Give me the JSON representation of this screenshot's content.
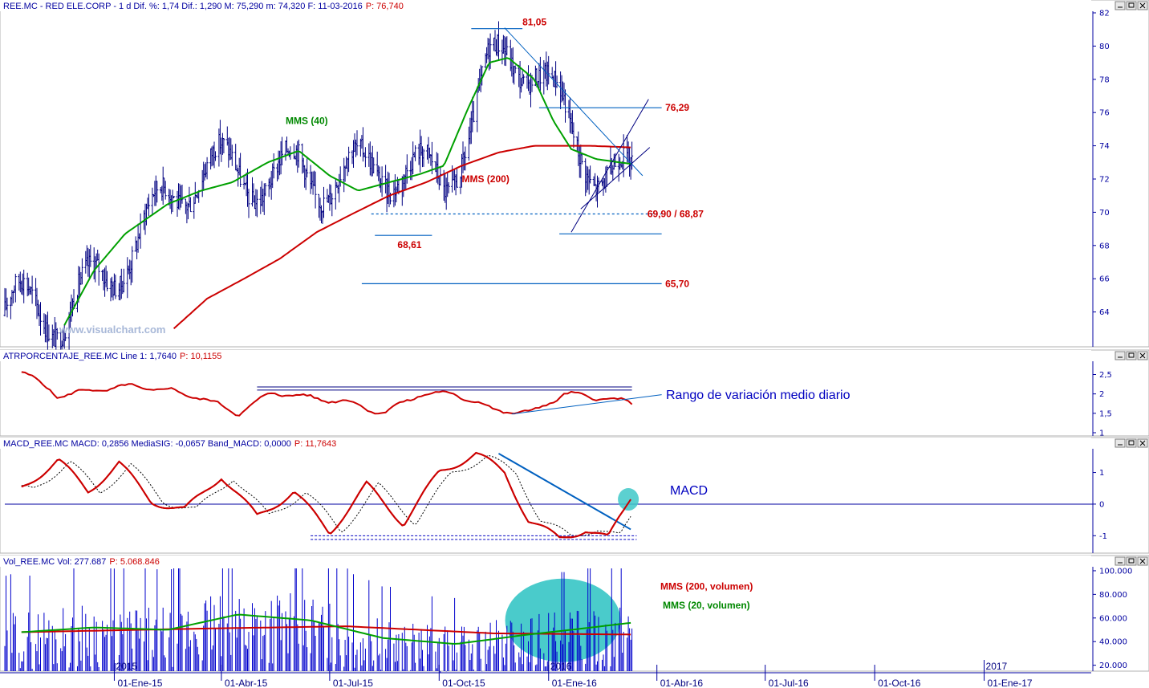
{
  "chart_data": [
    {
      "panel": "price",
      "type": "bar",
      "header": {
        "label": "REE.MC - RED ELE.CORP - 1 d Dif. %: 1,74 Dif.: 1,290 M: 75,290 m: 74,320 F: 11-03-2016",
        "last": "P: 76,740"
      },
      "ylim": [
        62,
        82
      ],
      "yticks": [
        "64",
        "66",
        "68",
        "70",
        "72",
        "74",
        "76",
        "78",
        "80",
        "82"
      ],
      "series": [
        {
          "name": "MMS (40)",
          "color": "#00a000",
          "x": [
            "2014-11-20",
            "2014-12-15",
            "2015-01-10",
            "2015-02-15",
            "2015-03-15",
            "2015-04-10",
            "2015-05-10",
            "2015-06-05",
            "2015-07-01",
            "2015-07-25",
            "2015-08-20",
            "2015-09-15",
            "2015-10-05",
            "2015-10-25",
            "2015-11-12",
            "2015-11-28",
            "2015-12-20",
            "2016-01-05",
            "2016-01-20",
            "2016-02-10",
            "2016-03-11"
          ],
          "values": [
            63.2,
            66.5,
            68.7,
            70.5,
            71.3,
            71.8,
            73.0,
            73.7,
            72.2,
            71.3,
            71.8,
            72.3,
            72.8,
            76.2,
            79.0,
            79.3,
            78.0,
            75.5,
            73.8,
            73.2,
            72.9
          ]
        },
        {
          "name": "MMS (200)",
          "color": "#cc0000",
          "x": [
            "2015-02-20",
            "2015-03-20",
            "2015-04-20",
            "2015-05-20",
            "2015-06-20",
            "2015-07-20",
            "2015-08-20",
            "2015-09-20",
            "2015-10-20",
            "2015-11-20",
            "2015-12-20",
            "2016-01-05",
            "2016-02-05",
            "2016-03-11"
          ],
          "values": [
            63.0,
            64.8,
            66.0,
            67.2,
            68.8,
            69.9,
            71.0,
            71.8,
            72.8,
            73.6,
            74.0,
            74.0,
            74.0,
            73.9
          ]
        }
      ],
      "annotations": [
        {
          "text": "81,05",
          "value": 81.05
        },
        {
          "text": "76,29",
          "value": 76.29
        },
        {
          "text": "69,90 / 68,87",
          "value": 69.9
        },
        {
          "text": "68,61",
          "value": 68.61
        },
        {
          "text": "65,70",
          "value": 65.7
        }
      ],
      "labels": [
        "MMS (40)",
        "MMS (200)"
      ],
      "watermark": "www.visualchart.com"
    },
    {
      "panel": "atr",
      "type": "line",
      "header": {
        "label": "ATRPORCENTAJE_REE.MC Line 1: 1,7640",
        "last": "P: 10,1155"
      },
      "ylim": [
        1,
        2.8
      ],
      "yticks": [
        "1",
        "1,5",
        "2",
        "2,5"
      ],
      "note": "Rango de variación medio diario",
      "series": [
        {
          "color": "#cc0000",
          "x": [
            "2014-10-15",
            "2014-11-15",
            "2014-12-15",
            "2015-01-15",
            "2015-02-15",
            "2015-03-15",
            "2015-04-15",
            "2015-05-15",
            "2015-06-15",
            "2015-07-15",
            "2015-08-15",
            "2015-09-15",
            "2015-10-15",
            "2015-11-15",
            "2015-12-15",
            "2016-01-15",
            "2016-02-15",
            "2016-03-11"
          ],
          "values": [
            2.6,
            1.95,
            2.1,
            2.2,
            2.1,
            1.9,
            1.5,
            2.05,
            1.9,
            1.8,
            1.5,
            2.0,
            2.0,
            1.6,
            1.5,
            2.0,
            1.9,
            1.76
          ]
        }
      ]
    },
    {
      "panel": "macd",
      "type": "line",
      "header": {
        "label": "MACD_REE.MC MACD: 0,2856 MediaSIG: -0,0657 Band_MACD: 0,0000",
        "last": "P: 11,7643"
      },
      "ylim": [
        -1.5,
        1.7
      ],
      "yticks": [
        "-1",
        "0",
        "1"
      ],
      "note": "MACD",
      "series": [
        {
          "color": "#cc0000",
          "x": [
            "2014-10-15",
            "2014-11-15",
            "2014-12-10",
            "2015-01-05",
            "2015-02-01",
            "2015-03-01",
            "2015-04-01",
            "2015-05-01",
            "2015-06-01",
            "2015-07-01",
            "2015-08-01",
            "2015-09-01",
            "2015-10-01",
            "2015-11-01",
            "2015-11-25",
            "2015-12-15",
            "2016-01-10",
            "2016-02-01",
            "2016-02-20",
            "2016-03-11"
          ],
          "values": [
            0.5,
            1.4,
            0.4,
            1.3,
            0.1,
            -0.2,
            0.9,
            -0.4,
            0.4,
            -0.9,
            0.6,
            -0.6,
            1.0,
            1.6,
            1.0,
            -0.5,
            -1.1,
            -0.8,
            -1.1,
            0.3
          ]
        }
      ]
    },
    {
      "panel": "volume",
      "type": "bar",
      "header": {
        "label": "Vol_REE.MC Vol: 277.687",
        "last": "P: 5.068.846"
      },
      "ylim": [
        15000,
        102000
      ],
      "yticks": [
        "20.000",
        "40.000",
        "60.000",
        "80.000",
        "100.000"
      ],
      "ytick_values": [
        20000,
        40000,
        60000,
        80000,
        100000
      ],
      "series": [
        {
          "name": "MMS (200, volumen)",
          "color": "#cc0000",
          "x": [
            "2014-10-15",
            "2015-03-15",
            "2015-07-15",
            "2015-11-15",
            "2016-03-11"
          ],
          "values": [
            48000,
            51000,
            53000,
            47000,
            46000
          ]
        },
        {
          "name": "MMS (20, volumen)",
          "color": "#00a000",
          "x": [
            "2014-10-15",
            "2014-12-15",
            "2015-02-15",
            "2015-04-15",
            "2015-06-15",
            "2015-08-15",
            "2015-10-15",
            "2015-12-15",
            "2016-01-20",
            "2016-03-11"
          ],
          "values": [
            48000,
            52000,
            50000,
            63000,
            58000,
            43000,
            38000,
            46000,
            50000,
            56000
          ]
        }
      ],
      "year_marks": [
        "2015",
        "2016",
        "2017"
      ]
    }
  ],
  "x_axis": {
    "labels": [
      "01-Ene-15",
      "01-Abr-15",
      "01-Jul-15",
      "01-Oct-15",
      "01-Ene-16",
      "01-Abr-16",
      "01-Jul-16",
      "01-Oct-16",
      "01-Ene-17"
    ],
    "range": [
      "2014-10-01",
      "2017-04-01"
    ]
  },
  "panel_icons": [
    "minimize-icon",
    "maximize-icon",
    "close-icon"
  ],
  "colors": {
    "axis": "#0000a0",
    "price_bars": "#000080",
    "trendlines": "#0060c0",
    "highlight": "#40c8c8",
    "ma_red": "#cc0000",
    "ma_green": "#00a000"
  }
}
